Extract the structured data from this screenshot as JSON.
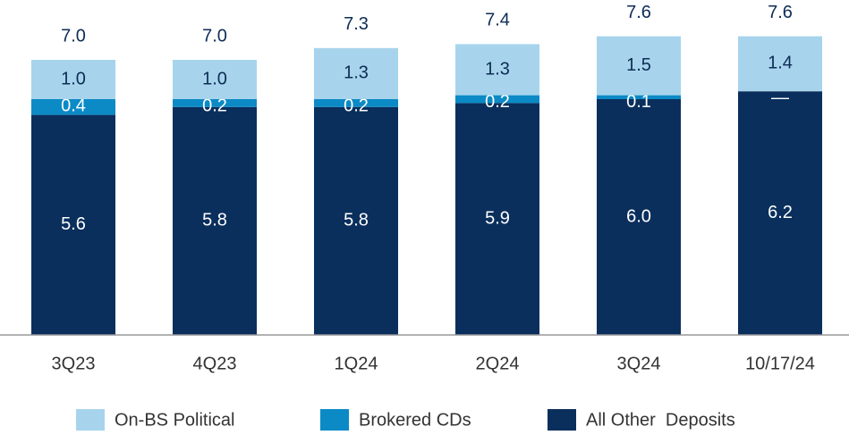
{
  "chart_data": {
    "type": "stacked_bar",
    "categories": [
      "3Q23",
      "4Q23",
      "1Q24",
      "2Q24",
      "3Q24",
      "10/17/24"
    ],
    "series": [
      {
        "name": "All Other  Deposits",
        "color": "#0a2f5c",
        "values": [
          5.6,
          5.8,
          5.8,
          5.9,
          6.0,
          6.2
        ],
        "value_labels": [
          "5.6",
          "5.8",
          "5.8",
          "5.9",
          "6.0",
          "6.2"
        ]
      },
      {
        "name": "Brokered CDs",
        "color": "#0b8ac6",
        "values": [
          0.4,
          0.2,
          0.2,
          0.2,
          0.1,
          0
        ],
        "value_labels": [
          "0.4",
          "0.2",
          "0.2",
          "0.2",
          "0.1",
          "—"
        ]
      },
      {
        "name": "On-BS Political",
        "color": "#a7d4ec",
        "values": [
          1.0,
          1.0,
          1.3,
          1.3,
          1.5,
          1.4
        ],
        "value_labels": [
          "1.0",
          "1.0",
          "1.3",
          "1.3",
          "1.5",
          "1.4"
        ]
      }
    ],
    "totals": [
      7.0,
      7.0,
      7.3,
      7.4,
      7.6,
      7.6
    ],
    "total_labels": [
      "7.0",
      "7.0",
      "7.3",
      "7.4",
      "7.6",
      "7.6"
    ]
  }
}
